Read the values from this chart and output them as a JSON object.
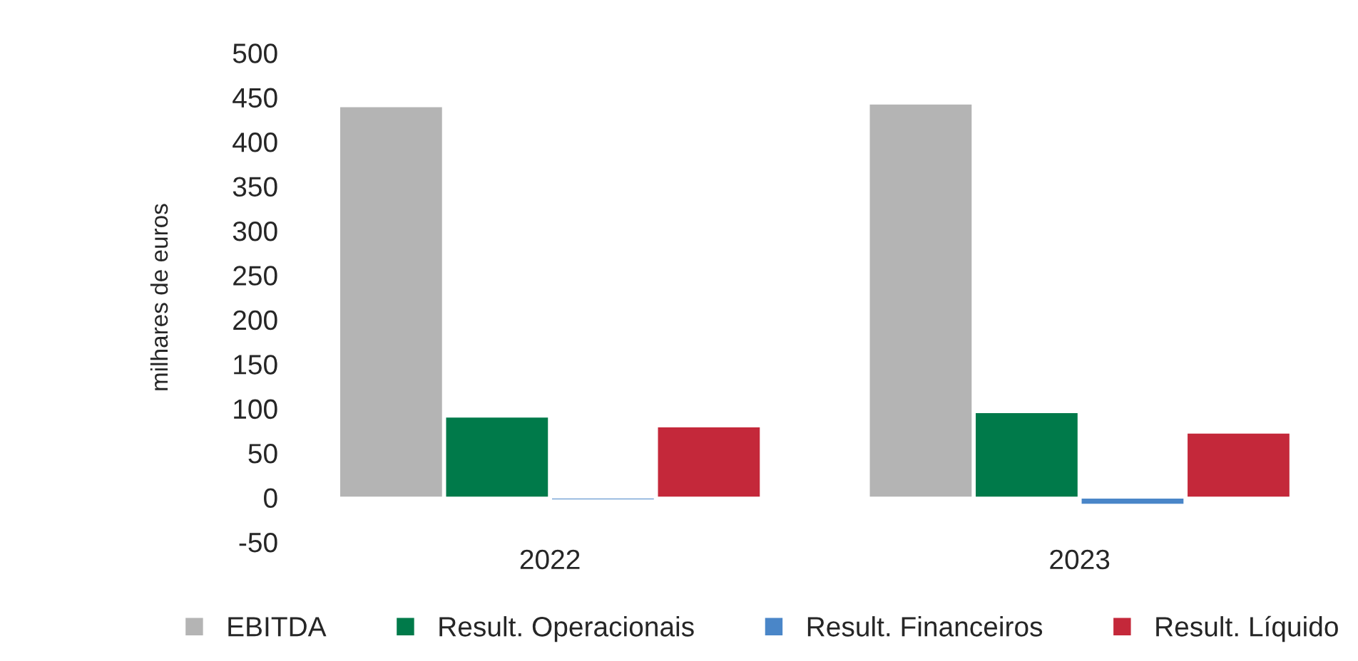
{
  "chart_data": {
    "type": "bar",
    "ylabel": "milhares de euros",
    "categories": [
      "2022",
      "2023"
    ],
    "series": [
      {
        "name": "EBITDA",
        "color": "#b4b4b4",
        "values": [
          440,
          443
        ]
      },
      {
        "name": "Result. Operacionais",
        "color": "#007a4a",
        "values": [
          91,
          96
        ]
      },
      {
        "name": "Result. Financeiros",
        "color": "#4a86c8",
        "values": [
          -3,
          -8
        ]
      },
      {
        "name": "Result. Líquido",
        "color": "#c4283a",
        "values": [
          80,
          73
        ]
      }
    ],
    "ylim": [
      -50,
      500
    ],
    "yticks": [
      -50,
      0,
      50,
      100,
      150,
      200,
      250,
      300,
      350,
      400,
      450,
      500
    ],
    "grid": false,
    "legend": "bottom"
  }
}
